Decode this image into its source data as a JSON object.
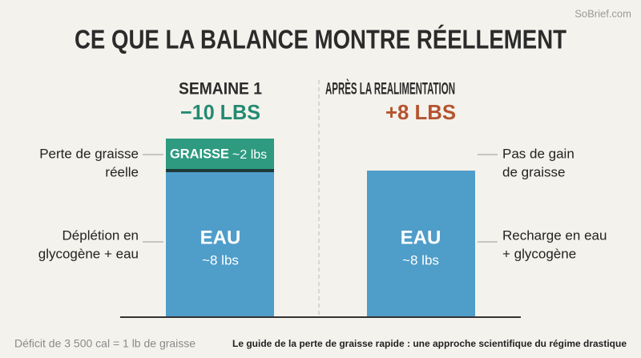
{
  "watermark": "SoBrief.com",
  "title": "CE QUE LA BALANCE MONTRE RÉELLEMENT",
  "left_panel": {
    "heading": "SEMAINE 1",
    "result": "−10 LBS",
    "fat_segment": {
      "label": "GRAISSE",
      "amount": "~2 lbs"
    },
    "water_segment": {
      "label": "EAU",
      "amount": "~8 lbs"
    },
    "annotations": [
      {
        "lines": [
          "Perte de graisse",
          "réelle"
        ]
      },
      {
        "lines": [
          "Déplétion en",
          "glycogène + eau"
        ]
      }
    ]
  },
  "right_panel": {
    "heading": "APRÈS LA REALIMENTATION",
    "result": "+8 LBS",
    "water_segment": {
      "label": "EAU",
      "amount": "~8 lbs"
    },
    "annotations": [
      {
        "lines": [
          "Pas de gain",
          "de graisse"
        ]
      },
      {
        "lines": [
          "Recharge en eau",
          "+ glycogène"
        ]
      }
    ]
  },
  "footer": {
    "note": "Déficit de 3 500 cal = 1 lb de graisse",
    "source": "Le guide de la perte de graisse rapide : une approche scientifique du régime drastique"
  }
}
